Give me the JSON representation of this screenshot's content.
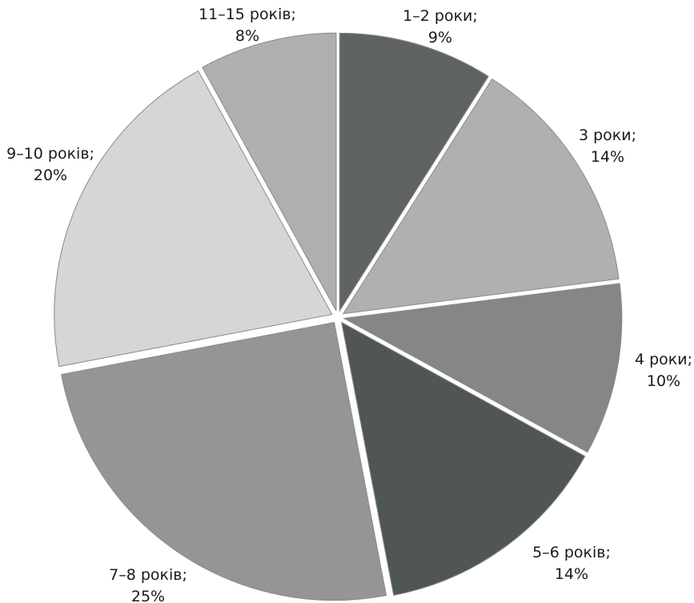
{
  "chart_data": {
    "type": "pie",
    "slices": [
      {
        "label_top": "1–2 роки;",
        "label_bottom": "9%",
        "value": 9,
        "color": "#5f6463"
      },
      {
        "label_top": "3 роки;",
        "label_bottom": "14%",
        "value": 14,
        "color": "#b0b0b0"
      },
      {
        "label_top": "4 роки;",
        "label_bottom": "10%",
        "value": 10,
        "color": "#868686"
      },
      {
        "label_top": "5–6 років;",
        "label_bottom": "14%",
        "value": 14,
        "color": "#505656"
      },
      {
        "label_top": "7–8 років;",
        "label_bottom": "25%",
        "value": 25,
        "color": "#959595"
      },
      {
        "label_top": "9–10 років;",
        "label_bottom": "20%",
        "value": 20,
        "color": "#d6d6d6"
      },
      {
        "label_top": "11–15 років;",
        "label_bottom": "8%",
        "value": 8,
        "color": "#adafb0"
      }
    ],
    "start_angle_deg": 0,
    "direction": "clockwise",
    "exploded": true
  }
}
